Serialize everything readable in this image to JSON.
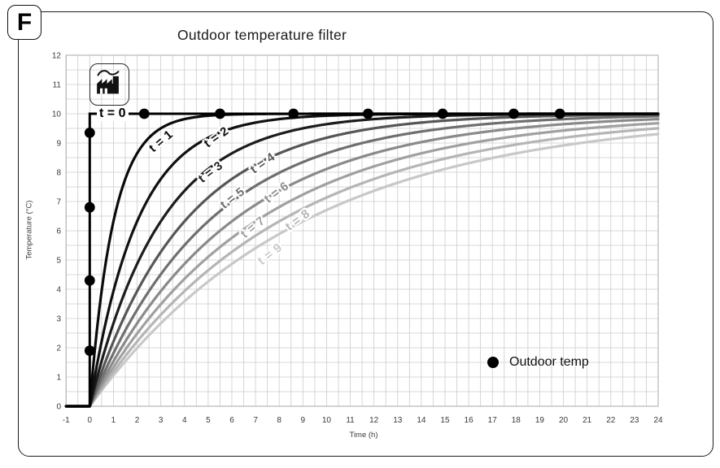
{
  "figure_label": "F",
  "title": "Outdoor temperature filter",
  "legend": {
    "label": "Outdoor temp",
    "marker_color": "#000000"
  },
  "axes": {
    "x_label": "Time (h)",
    "y_label": "Temperature (°C)"
  },
  "icons": {
    "factory": "factory-with-smoke"
  },
  "chart_data": {
    "type": "line",
    "title": "Outdoor temperature filter",
    "xlabel": "Time (h)",
    "ylabel": "Temperature (°C)",
    "xlim": [
      -1,
      24
    ],
    "ylim": [
      0,
      12
    ],
    "x_ticks": [
      -1,
      0,
      1,
      2,
      3,
      4,
      5,
      6,
      7,
      8,
      9,
      10,
      11,
      12,
      13,
      14,
      15,
      16,
      17,
      18,
      19,
      20,
      21,
      22,
      23,
      24
    ],
    "y_ticks": [
      0,
      1,
      2,
      3,
      4,
      5,
      6,
      7,
      8,
      9,
      10,
      11,
      12
    ],
    "grid": {
      "on": true,
      "minor_step": 0.5,
      "color": "#cccccc"
    },
    "model": "First-order filter step response T(t) = 10*(1 - exp(-t/tau)); outdoor temperature steps from 0 to 10 °C at t = 0; label t = filter time constant in hours",
    "step_series": {
      "label": "t = 0",
      "color": "#000000",
      "y_before": 0,
      "y_after": 10,
      "step_at": 0,
      "label_pos": [
        0.3,
        10
      ]
    },
    "filter_series": [
      {
        "label": "t = 1",
        "tau_h": 1,
        "color": "#0a0a0a",
        "label_pos": [
          3.0,
          9.05
        ],
        "label_angle_deg": -40
      },
      {
        "label": "t = 2",
        "tau_h": 2,
        "color": "#101010",
        "label_pos": [
          5.35,
          9.2
        ],
        "label_angle_deg": -35
      },
      {
        "label": "t = 3",
        "tau_h": 3,
        "color": "#1c1c1c",
        "label_pos": [
          5.1,
          8.0
        ],
        "label_angle_deg": -37
      },
      {
        "label": "t = 4",
        "tau_h": 4,
        "color": "#565656",
        "label_pos": [
          7.3,
          8.3
        ],
        "label_angle_deg": -35
      },
      {
        "label": "t = 5",
        "tau_h": 5,
        "color": "#6f6f6f",
        "label_pos": [
          6.05,
          7.1
        ],
        "label_angle_deg": -37
      },
      {
        "label": "t = 6",
        "tau_h": 6,
        "color": "#8a8a8a",
        "label_pos": [
          7.9,
          7.3
        ],
        "label_angle_deg": -36
      },
      {
        "label": "t = 7",
        "tau_h": 7,
        "color": "#a0a0a0",
        "label_pos": [
          6.9,
          6.1
        ],
        "label_angle_deg": -38
      },
      {
        "label": "t = 8",
        "tau_h": 8,
        "color": "#b5b5b5",
        "label_pos": [
          8.8,
          6.35
        ],
        "label_angle_deg": -36
      },
      {
        "label": "t = 9",
        "tau_h": 9,
        "color": "#c8c8c8",
        "label_pos": [
          7.6,
          5.2
        ],
        "label_angle_deg": -38
      }
    ],
    "outdoor_temp_markers": {
      "legend": "Outdoor temp",
      "color": "#000000",
      "points": [
        [
          0,
          1.9
        ],
        [
          0,
          4.3
        ],
        [
          0,
          6.8
        ],
        [
          0,
          9.35
        ],
        [
          2.3,
          10
        ],
        [
          5.5,
          10
        ],
        [
          8.6,
          10
        ],
        [
          11.75,
          10
        ],
        [
          14.9,
          10
        ],
        [
          17.9,
          10
        ],
        [
          19.85,
          10
        ]
      ]
    }
  }
}
